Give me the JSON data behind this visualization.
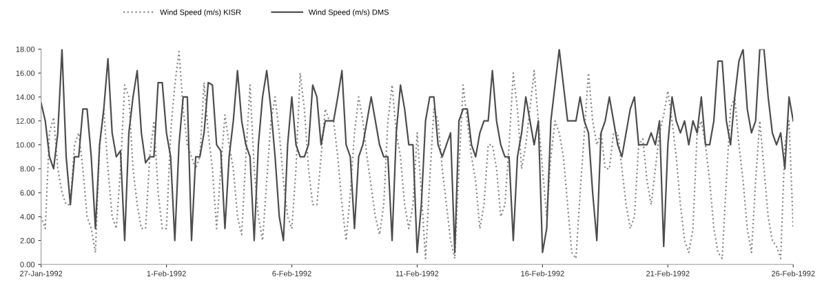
{
  "chart_data": {
    "type": "line",
    "x": [
      "1992-01-27T00:00",
      "1992-01-27T04:00",
      "1992-01-27T08:00",
      "1992-01-27T12:00",
      "1992-01-27T16:00",
      "1992-01-27T20:00",
      "1992-01-28T00:00",
      "1992-01-28T04:00",
      "1992-01-28T08:00",
      "1992-01-28T12:00",
      "1992-01-28T16:00",
      "1992-01-28T20:00",
      "1992-01-29T00:00",
      "1992-01-29T04:00",
      "1992-01-29T08:00",
      "1992-01-29T12:00",
      "1992-01-29T16:00",
      "1992-01-29T20:00",
      "1992-01-30T00:00",
      "1992-01-30T04:00",
      "1992-01-30T08:00",
      "1992-01-30T12:00",
      "1992-01-30T16:00",
      "1992-01-30T20:00",
      "1992-01-31T00:00",
      "1992-01-31T04:00",
      "1992-01-31T08:00",
      "1992-01-31T12:00",
      "1992-01-31T16:00",
      "1992-01-31T20:00",
      "1992-02-01T00:00",
      "1992-02-01T04:00",
      "1992-02-01T08:00",
      "1992-02-01T12:00",
      "1992-02-01T16:00",
      "1992-02-01T20:00",
      "1992-02-02T00:00",
      "1992-02-02T04:00",
      "1992-02-02T08:00",
      "1992-02-02T12:00",
      "1992-02-02T16:00",
      "1992-02-02T20:00",
      "1992-02-03T00:00",
      "1992-02-03T04:00",
      "1992-02-03T08:00",
      "1992-02-03T12:00",
      "1992-02-03T16:00",
      "1992-02-03T20:00",
      "1992-02-04T00:00",
      "1992-02-04T04:00",
      "1992-02-04T08:00",
      "1992-02-04T12:00",
      "1992-02-04T16:00",
      "1992-02-04T20:00",
      "1992-02-05T00:00",
      "1992-02-05T04:00",
      "1992-02-05T08:00",
      "1992-02-05T12:00",
      "1992-02-05T16:00",
      "1992-02-05T20:00",
      "1992-02-06T00:00",
      "1992-02-06T04:00",
      "1992-02-06T08:00",
      "1992-02-06T12:00",
      "1992-02-06T16:00",
      "1992-02-06T20:00",
      "1992-02-07T00:00",
      "1992-02-07T04:00",
      "1992-02-07T08:00",
      "1992-02-07T12:00",
      "1992-02-07T16:00",
      "1992-02-07T20:00",
      "1992-02-08T00:00",
      "1992-02-08T04:00",
      "1992-02-08T08:00",
      "1992-02-08T12:00",
      "1992-02-08T16:00",
      "1992-02-08T20:00",
      "1992-02-09T00:00",
      "1992-02-09T04:00",
      "1992-02-09T08:00",
      "1992-02-09T12:00",
      "1992-02-09T16:00",
      "1992-02-09T20:00",
      "1992-02-10T00:00",
      "1992-02-10T04:00",
      "1992-02-10T08:00",
      "1992-02-10T12:00",
      "1992-02-10T16:00",
      "1992-02-10T20:00",
      "1992-02-11T00:00",
      "1992-02-11T04:00",
      "1992-02-11T08:00",
      "1992-02-11T12:00",
      "1992-02-11T16:00",
      "1992-02-11T20:00",
      "1992-02-12T00:00",
      "1992-02-12T04:00",
      "1992-02-12T08:00",
      "1992-02-12T12:00",
      "1992-02-12T16:00",
      "1992-02-12T20:00",
      "1992-02-13T00:00",
      "1992-02-13T04:00",
      "1992-02-13T08:00",
      "1992-02-13T12:00",
      "1992-02-13T16:00",
      "1992-02-13T20:00",
      "1992-02-14T00:00",
      "1992-02-14T04:00",
      "1992-02-14T08:00",
      "1992-02-14T12:00",
      "1992-02-14T16:00",
      "1992-02-14T20:00",
      "1992-02-15T00:00",
      "1992-02-15T04:00",
      "1992-02-15T08:00",
      "1992-02-15T12:00",
      "1992-02-15T16:00",
      "1992-02-15T20:00",
      "1992-02-16T00:00",
      "1992-02-16T04:00",
      "1992-02-16T08:00",
      "1992-02-16T12:00",
      "1992-02-16T16:00",
      "1992-02-16T20:00",
      "1992-02-17T00:00",
      "1992-02-17T04:00",
      "1992-02-17T08:00",
      "1992-02-17T12:00",
      "1992-02-17T16:00",
      "1992-02-17T20:00",
      "1992-02-18T00:00",
      "1992-02-18T04:00",
      "1992-02-18T08:00",
      "1992-02-18T12:00",
      "1992-02-18T16:00",
      "1992-02-18T20:00",
      "1992-02-19T00:00",
      "1992-02-19T04:00",
      "1992-02-19T08:00",
      "1992-02-19T12:00",
      "1992-02-19T16:00",
      "1992-02-19T20:00",
      "1992-02-20T00:00",
      "1992-02-20T04:00",
      "1992-02-20T08:00",
      "1992-02-20T12:00",
      "1992-02-20T16:00",
      "1992-02-20T20:00",
      "1992-02-21T00:00",
      "1992-02-21T04:00",
      "1992-02-21T08:00",
      "1992-02-21T12:00",
      "1992-02-21T16:00",
      "1992-02-21T20:00",
      "1992-02-22T00:00",
      "1992-02-22T04:00",
      "1992-02-22T08:00",
      "1992-02-22T12:00",
      "1992-02-22T16:00",
      "1992-02-22T20:00",
      "1992-02-23T00:00",
      "1992-02-23T04:00",
      "1992-02-23T08:00",
      "1992-02-23T12:00",
      "1992-02-23T16:00",
      "1992-02-23T20:00",
      "1992-02-24T00:00",
      "1992-02-24T04:00",
      "1992-02-24T08:00",
      "1992-02-24T12:00",
      "1992-02-24T16:00",
      "1992-02-24T20:00",
      "1992-02-25T00:00",
      "1992-02-25T04:00",
      "1992-02-25T08:00",
      "1992-02-25T12:00",
      "1992-02-25T16:00",
      "1992-02-25T20:00",
      "1992-02-26T00:00"
    ],
    "series": [
      {
        "name": "Wind Speed (m/s) KISR",
        "color": "#8a8a8a",
        "line_style": "dotted",
        "values": [
          4,
          3,
          11,
          12.3,
          8,
          6,
          5,
          5,
          10,
          11,
          8,
          4,
          3,
          1,
          10,
          13,
          8,
          4,
          3,
          8,
          15,
          14,
          8,
          5,
          3,
          3,
          9,
          12,
          6,
          3,
          3,
          11,
          15,
          17.8,
          13,
          10,
          9,
          8,
          9,
          15.2,
          11,
          8,
          3,
          8,
          12.5,
          10,
          8,
          4,
          2.5,
          9,
          15,
          8,
          4,
          2,
          7,
          12,
          14,
          11,
          7,
          4,
          3,
          8,
          16,
          13,
          8,
          5,
          5,
          9,
          13,
          12,
          12,
          9,
          5,
          2,
          6,
          11,
          14,
          12,
          9,
          6.5,
          4,
          2.5,
          5,
          12,
          15,
          11,
          9,
          5,
          3,
          5,
          11,
          6,
          0.5,
          7,
          13,
          12,
          8,
          5,
          2,
          0.5,
          8,
          15,
          12,
          9,
          7,
          3,
          5,
          10,
          10,
          8,
          4,
          5,
          10,
          16,
          13,
          8,
          10,
          13,
          16.2,
          12,
          8,
          4,
          9,
          12,
          11,
          9,
          5,
          1,
          0.5,
          6,
          11,
          16,
          12,
          10,
          11,
          8,
          8,
          11,
          11,
          8,
          5,
          3,
          4,
          10,
          10.5,
          7,
          5,
          8,
          11,
          12.5,
          14.5,
          12,
          9,
          5,
          2,
          1,
          3,
          11,
          12,
          10,
          7,
          3,
          1,
          0.5,
          7,
          13,
          14,
          10,
          7,
          3,
          1,
          7,
          12,
          8,
          4,
          2,
          1.5,
          0.5,
          10,
          12,
          3
        ]
      },
      {
        "name": "Wind Speed (m/s) DMS",
        "color": "#4d4d4d",
        "line_style": "solid",
        "values": [
          13.5,
          12,
          9,
          8,
          11,
          18,
          9,
          5,
          9,
          9,
          13,
          13,
          9,
          3,
          10,
          13,
          17.2,
          11,
          9,
          9.5,
          2,
          11,
          14,
          16.2,
          11,
          8.5,
          9,
          9,
          15.2,
          15.2,
          11,
          9,
          2,
          10,
          14,
          14,
          2,
          9,
          9,
          11,
          15.2,
          15,
          10,
          9.5,
          3,
          9,
          12,
          16.2,
          12,
          10,
          9,
          2,
          10,
          14,
          16.2,
          13,
          9,
          4,
          2,
          10,
          14,
          10,
          9,
          9,
          10,
          15,
          14,
          10,
          12,
          12,
          12,
          14,
          16.2,
          10,
          9,
          3,
          9,
          10,
          12,
          14,
          12,
          10,
          9,
          9,
          2,
          11,
          15,
          13,
          10,
          10,
          1,
          5,
          12,
          14,
          14,
          10,
          9,
          10,
          11,
          1,
          12,
          13,
          13,
          10,
          9,
          11,
          12,
          12,
          16.2,
          12,
          10,
          9,
          9,
          2,
          9,
          11,
          14,
          12,
          10,
          12,
          1,
          3,
          12,
          15,
          18,
          15,
          12,
          12,
          12,
          14,
          12,
          11,
          6,
          2,
          11,
          12,
          14,
          12,
          10,
          9,
          11,
          13,
          14,
          10,
          10,
          10,
          11,
          10,
          12,
          1.5,
          10,
          14,
          12,
          11,
          12,
          10,
          12,
          11,
          14,
          10,
          10,
          12,
          17,
          17,
          12,
          10,
          14,
          17,
          18,
          13,
          11,
          12,
          18,
          18,
          14,
          11,
          10,
          11,
          8,
          14,
          12
        ]
      }
    ],
    "xlim": [
      "1992-01-27",
      "1992-02-26"
    ],
    "xticks": [
      {
        "value": "1992-01-27",
        "label": "27-Jan-1992"
      },
      {
        "value": "1992-02-01",
        "label": "1-Feb-1992"
      },
      {
        "value": "1992-02-06",
        "label": "6-Feb-1992"
      },
      {
        "value": "1992-02-11",
        "label": "11-Feb-1992"
      },
      {
        "value": "1992-02-16",
        "label": "16-Feb-1992"
      },
      {
        "value": "1992-02-21",
        "label": "21-Feb-1992"
      },
      {
        "value": "1992-02-26",
        "label": "26-Feb-1992"
      }
    ],
    "ylim": [
      0,
      18
    ],
    "yticks": [
      {
        "value": 0,
        "label": "0.00"
      },
      {
        "value": 2,
        "label": "2.00"
      },
      {
        "value": 4,
        "label": "4.00"
      },
      {
        "value": 6,
        "label": "6.00"
      },
      {
        "value": 8,
        "label": "8.00"
      },
      {
        "value": 10,
        "label": "10.00"
      },
      {
        "value": 12,
        "label": "12.00"
      },
      {
        "value": 14,
        "label": "14.00"
      },
      {
        "value": 16,
        "label": "16.00"
      },
      {
        "value": 18,
        "label": "18.00"
      }
    ],
    "legend": "top"
  }
}
